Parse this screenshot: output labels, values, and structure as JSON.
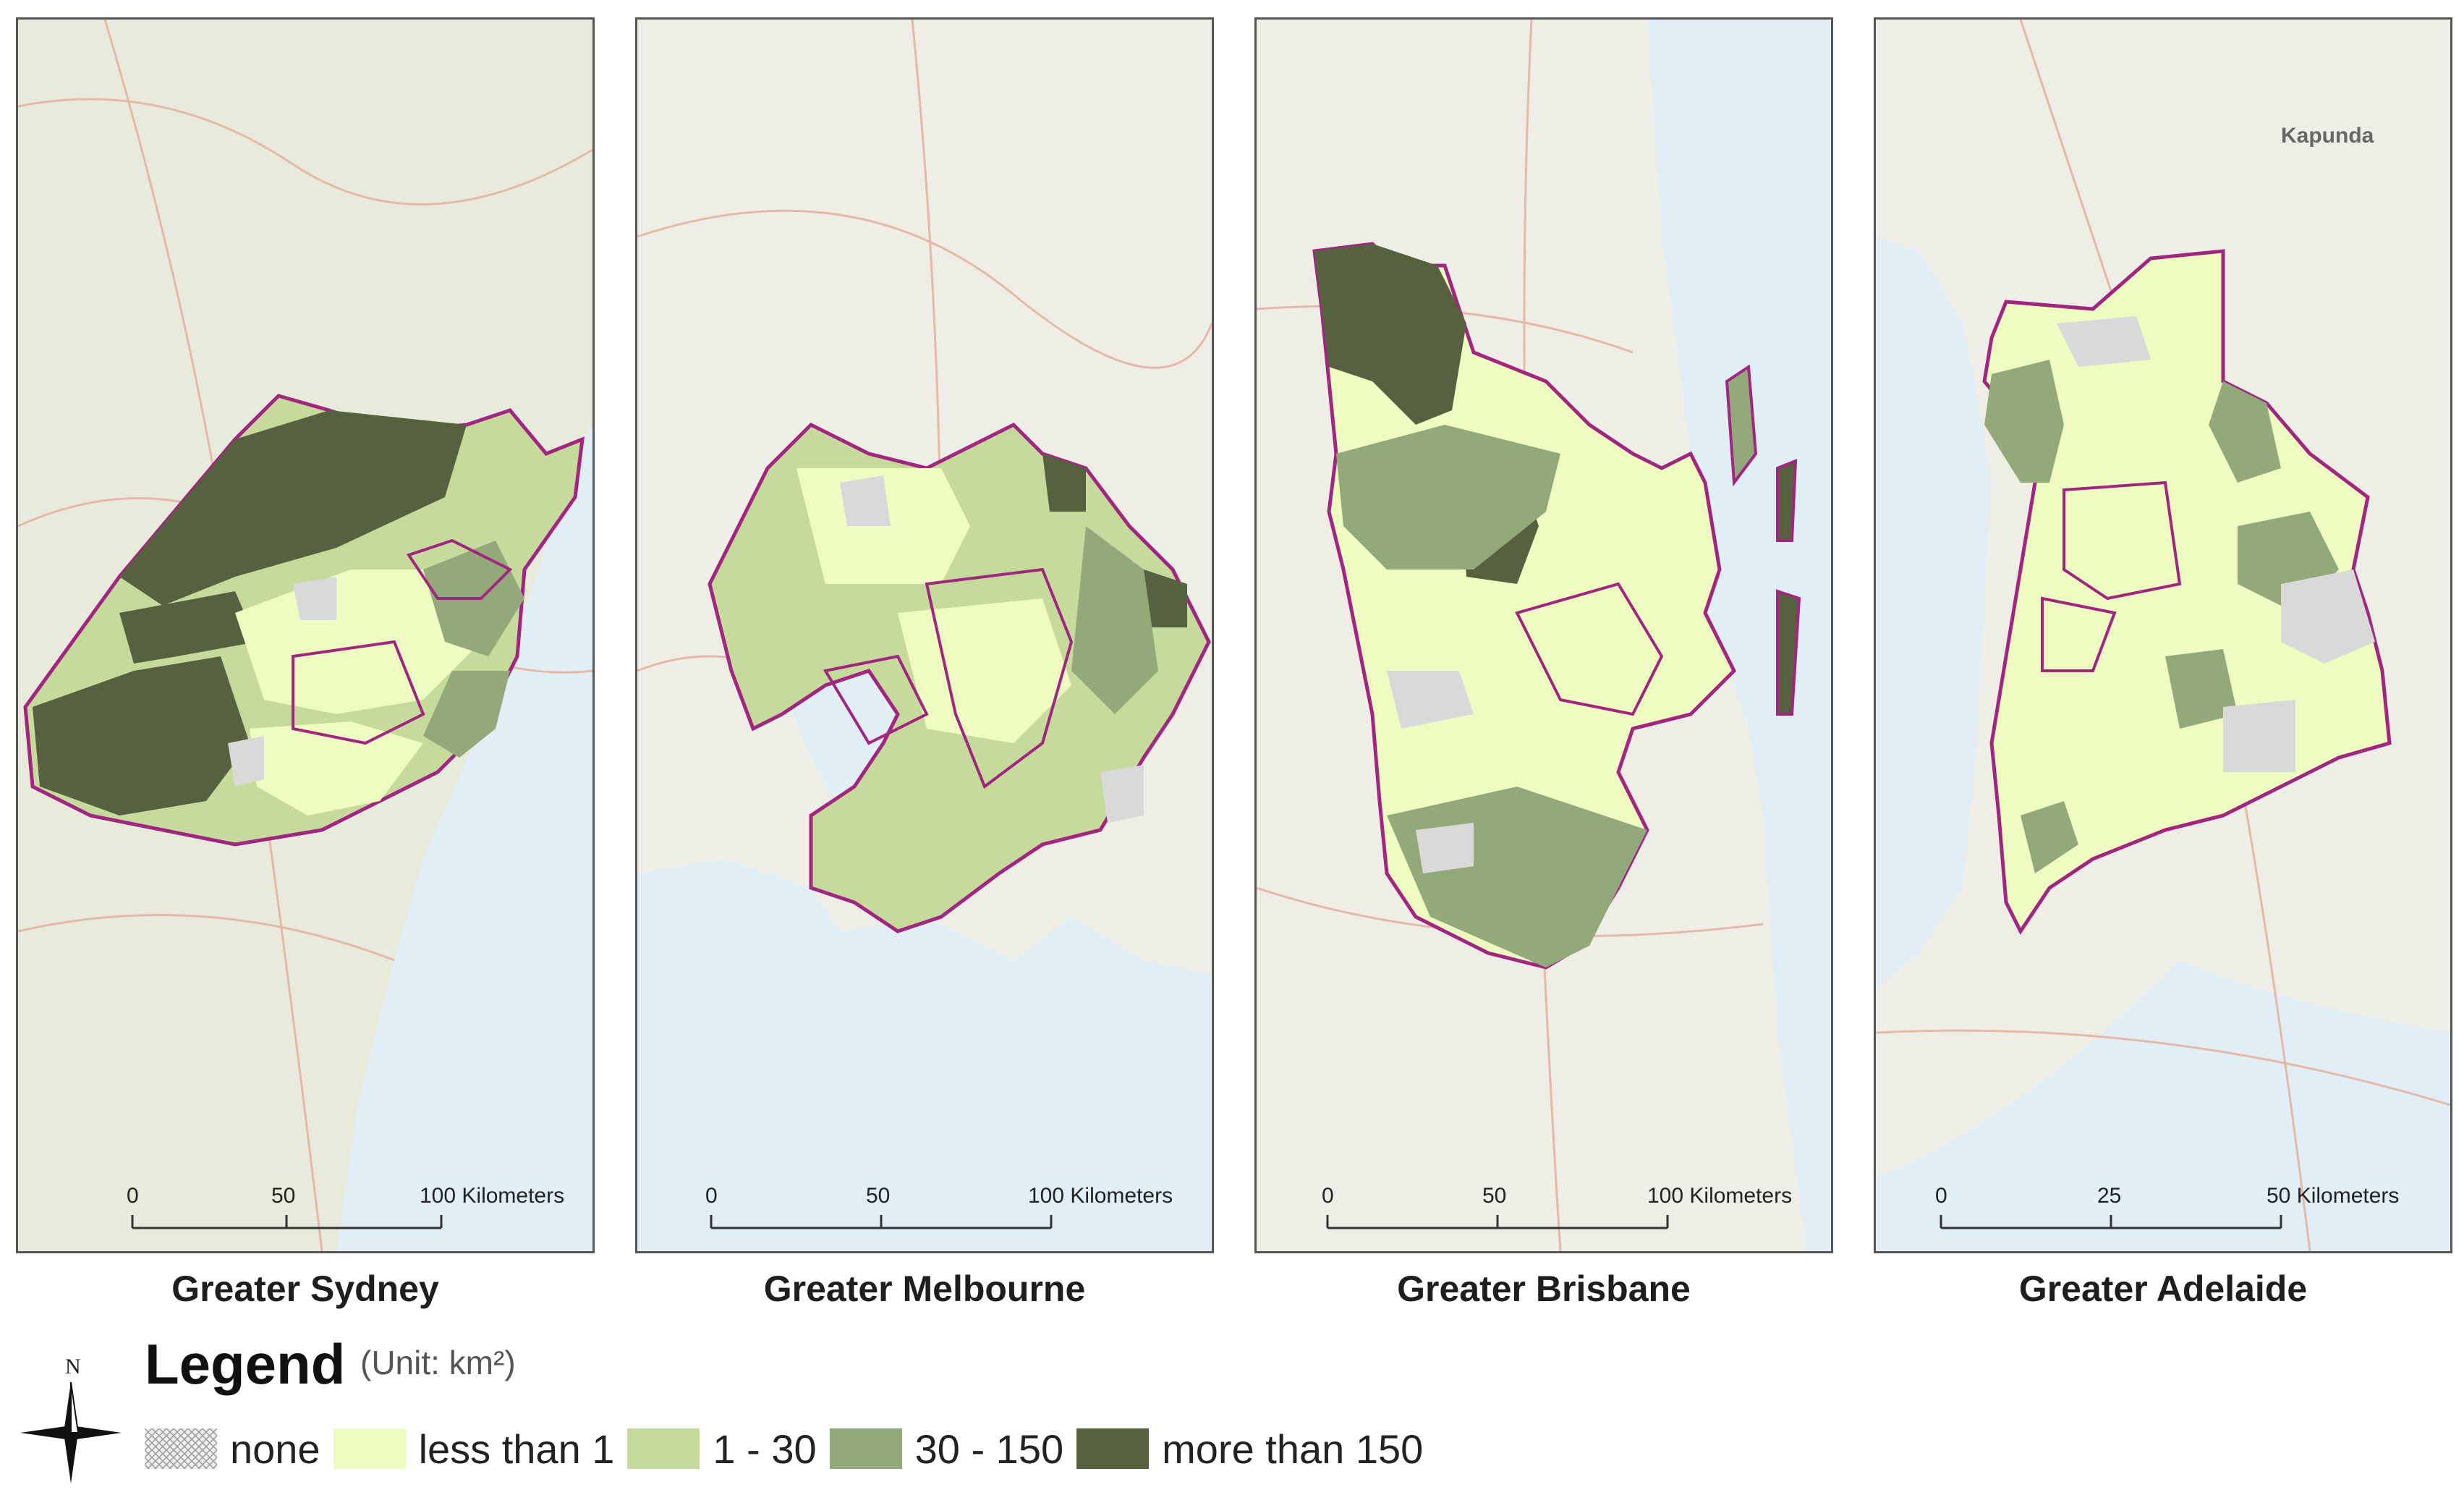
{
  "panels": [
    {
      "id": "sydney",
      "title": "Greater Sydney",
      "scale": {
        "ticks": [
          "0",
          "50",
          "100 Kilometers"
        ]
      }
    },
    {
      "id": "melbourne",
      "title": "Greater Melbourne",
      "scale": {
        "ticks": [
          "0",
          "50",
          "100 Kilometers"
        ]
      }
    },
    {
      "id": "brisbane",
      "title": "Greater Brisbane",
      "scale": {
        "ticks": [
          "0",
          "50",
          "100 Kilometers"
        ]
      }
    },
    {
      "id": "adelaide",
      "title": "Greater Adelaide",
      "scale": {
        "ticks": [
          "0",
          "25",
          "50 Kilometers"
        ]
      }
    }
  ],
  "legend": {
    "title": "Legend",
    "unit": "(Unit: km²)",
    "north_label": "N",
    "items": [
      {
        "label": "none",
        "color": "#d9d9d9",
        "pattern": "crosshatch"
      },
      {
        "label": "less than 1",
        "color": "#effcc1"
      },
      {
        "label": "1 - 30",
        "color": "#c6da9c"
      },
      {
        "label": "30 - 150",
        "color": "#93a97a"
      },
      {
        "label": "more than 150",
        "color": "#56623f"
      }
    ]
  },
  "basemap_labels": {
    "adelaide_town": "Kapunda"
  },
  "colors": {
    "boundary": "#a0267f",
    "sea": "#e1eef6",
    "land": "#f2f1ea"
  }
}
